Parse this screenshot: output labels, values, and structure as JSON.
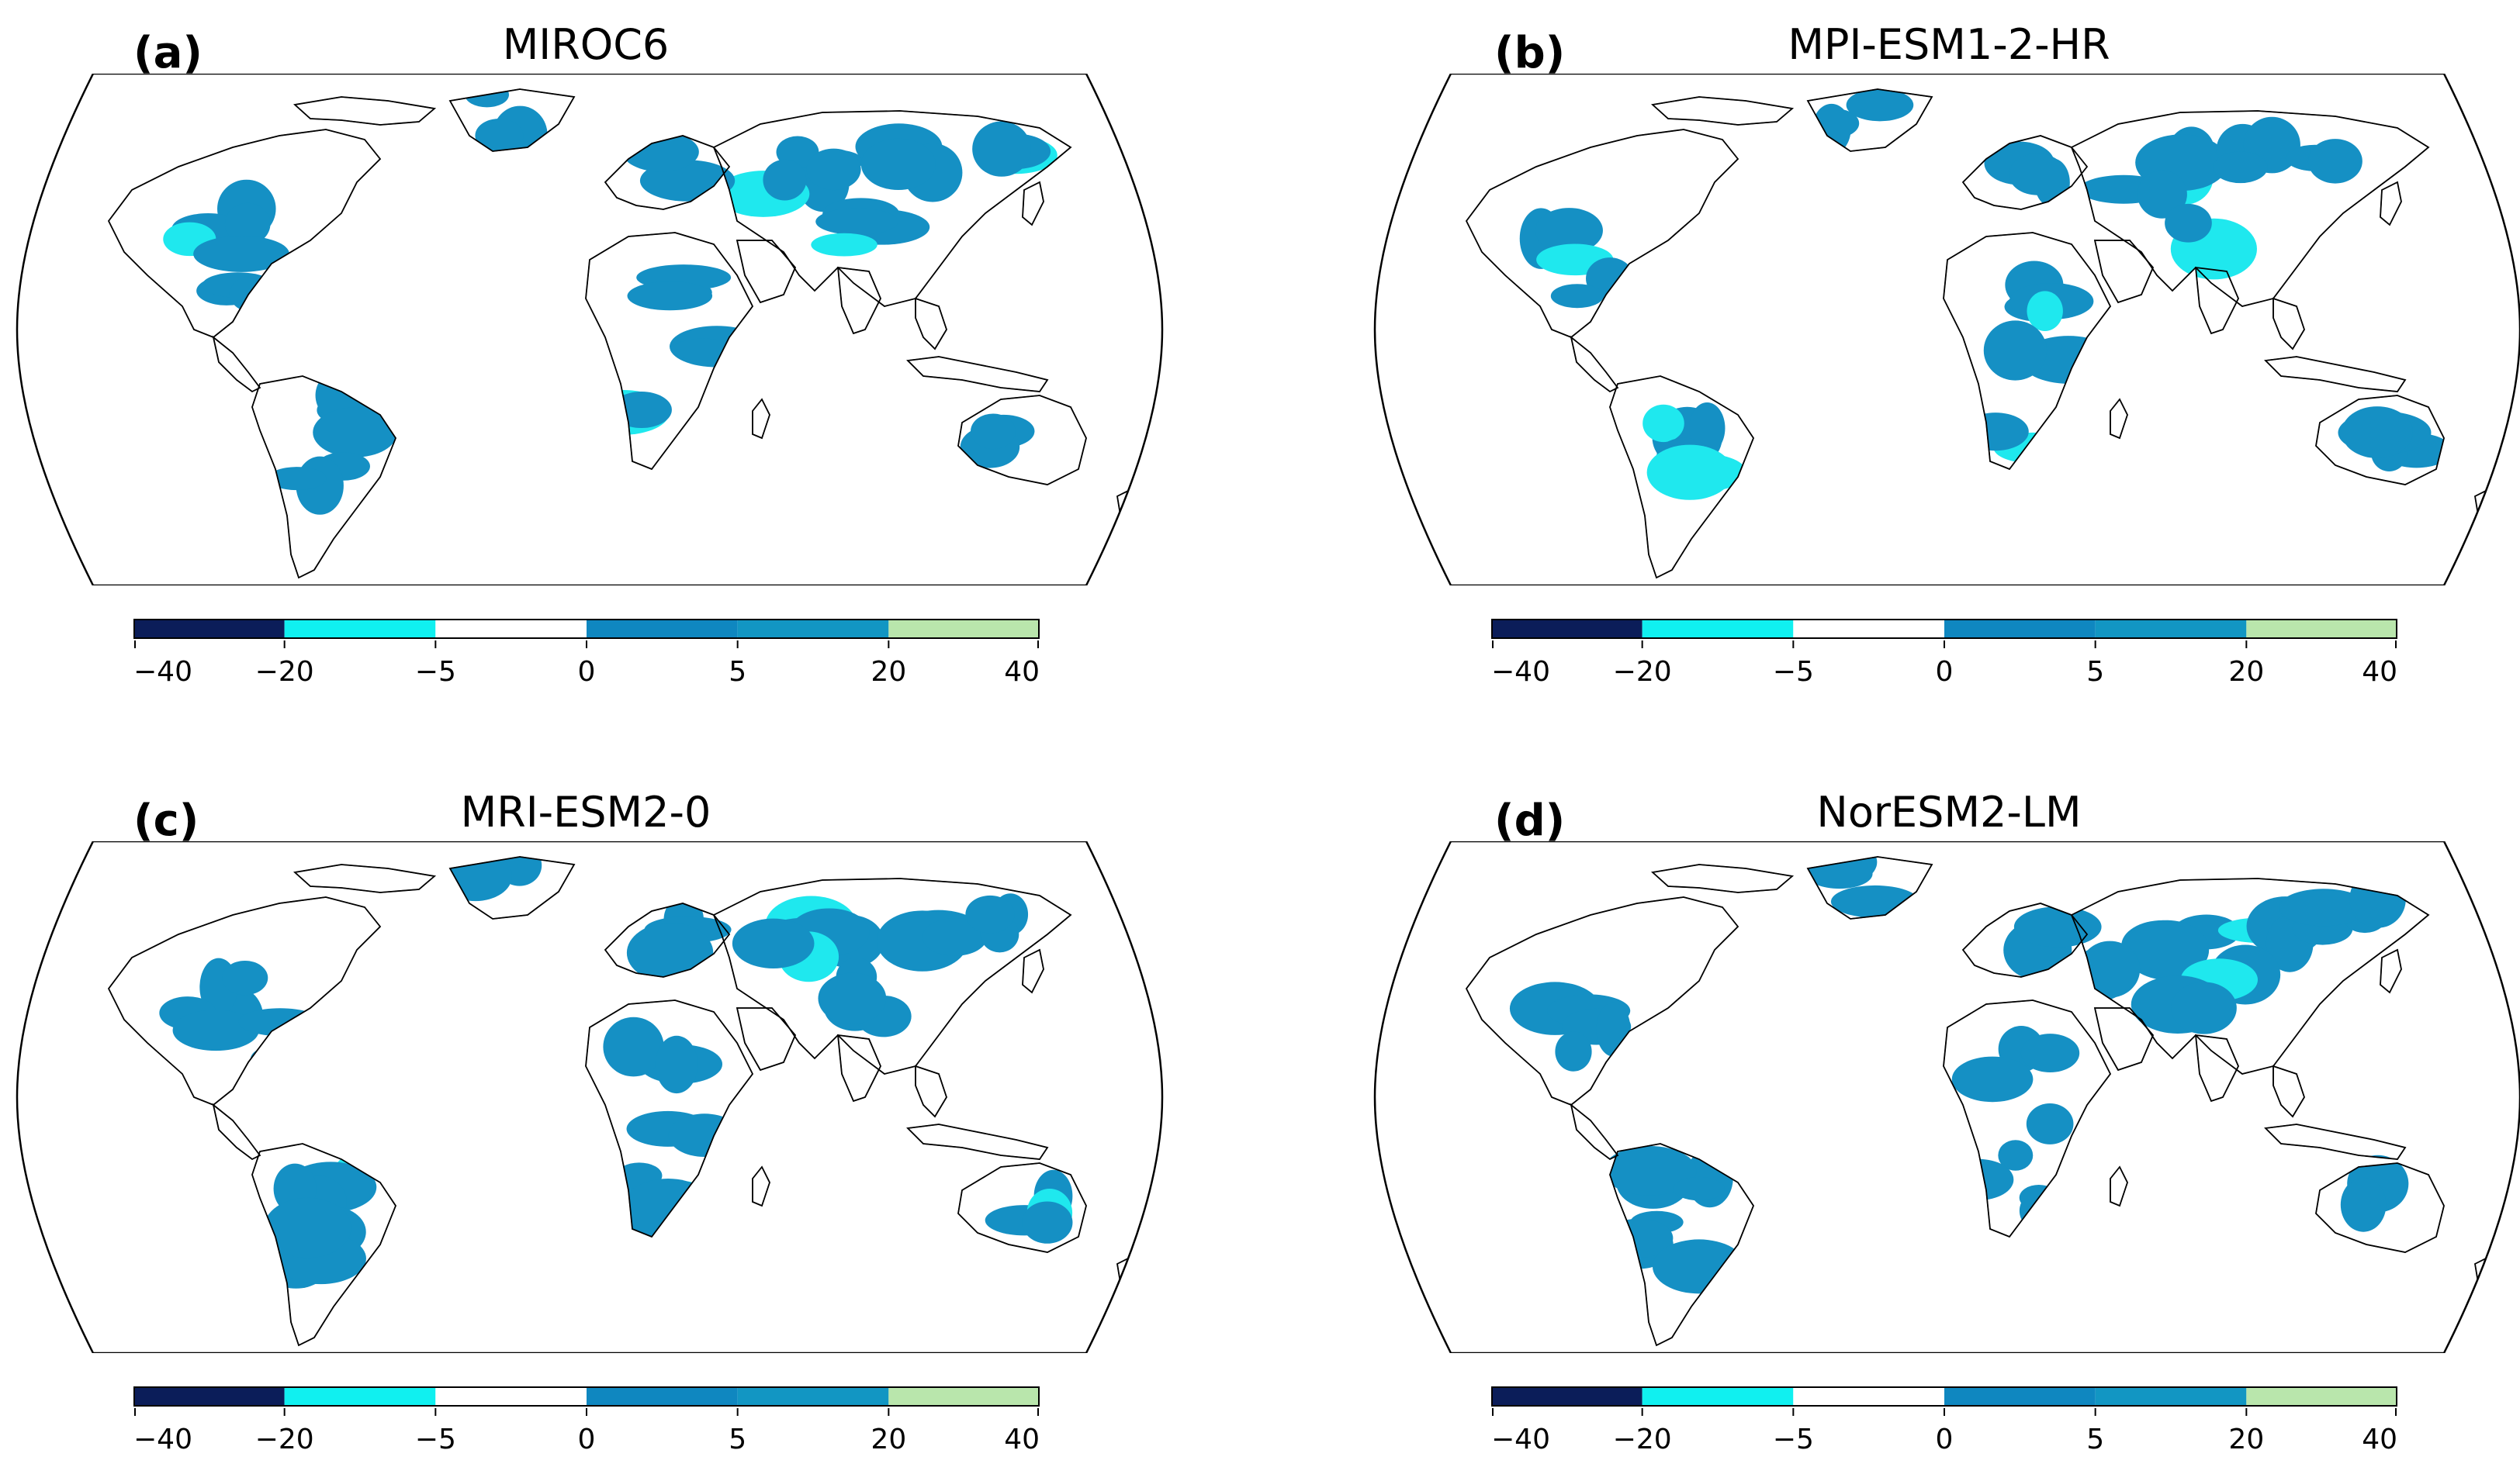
{
  "panels": [
    {
      "id": "a",
      "letter": "(a)",
      "model": "MIROC6"
    },
    {
      "id": "b",
      "letter": "(b)",
      "model": "MPI-ESM1-2-HR"
    },
    {
      "id": "c",
      "letter": "(c)",
      "model": "MRI-ESM2-0"
    },
    {
      "id": "d",
      "letter": "(d)",
      "model": "NorESM2-LM"
    }
  ],
  "colorbar": {
    "ticks": [
      "−40",
      "−20",
      "−5",
      "0",
      "5",
      "20",
      "40"
    ],
    "colors": [
      "#0b1d59",
      "#10f0f0",
      "#ffffff",
      "#0f87c0",
      "#1296c3",
      "#b9e6ac"
    ]
  },
  "colors": {
    "land_fill": "#1590c4",
    "minor_fill": "#1fe8ee",
    "coastline": "#000000",
    "border": "#555555"
  }
}
